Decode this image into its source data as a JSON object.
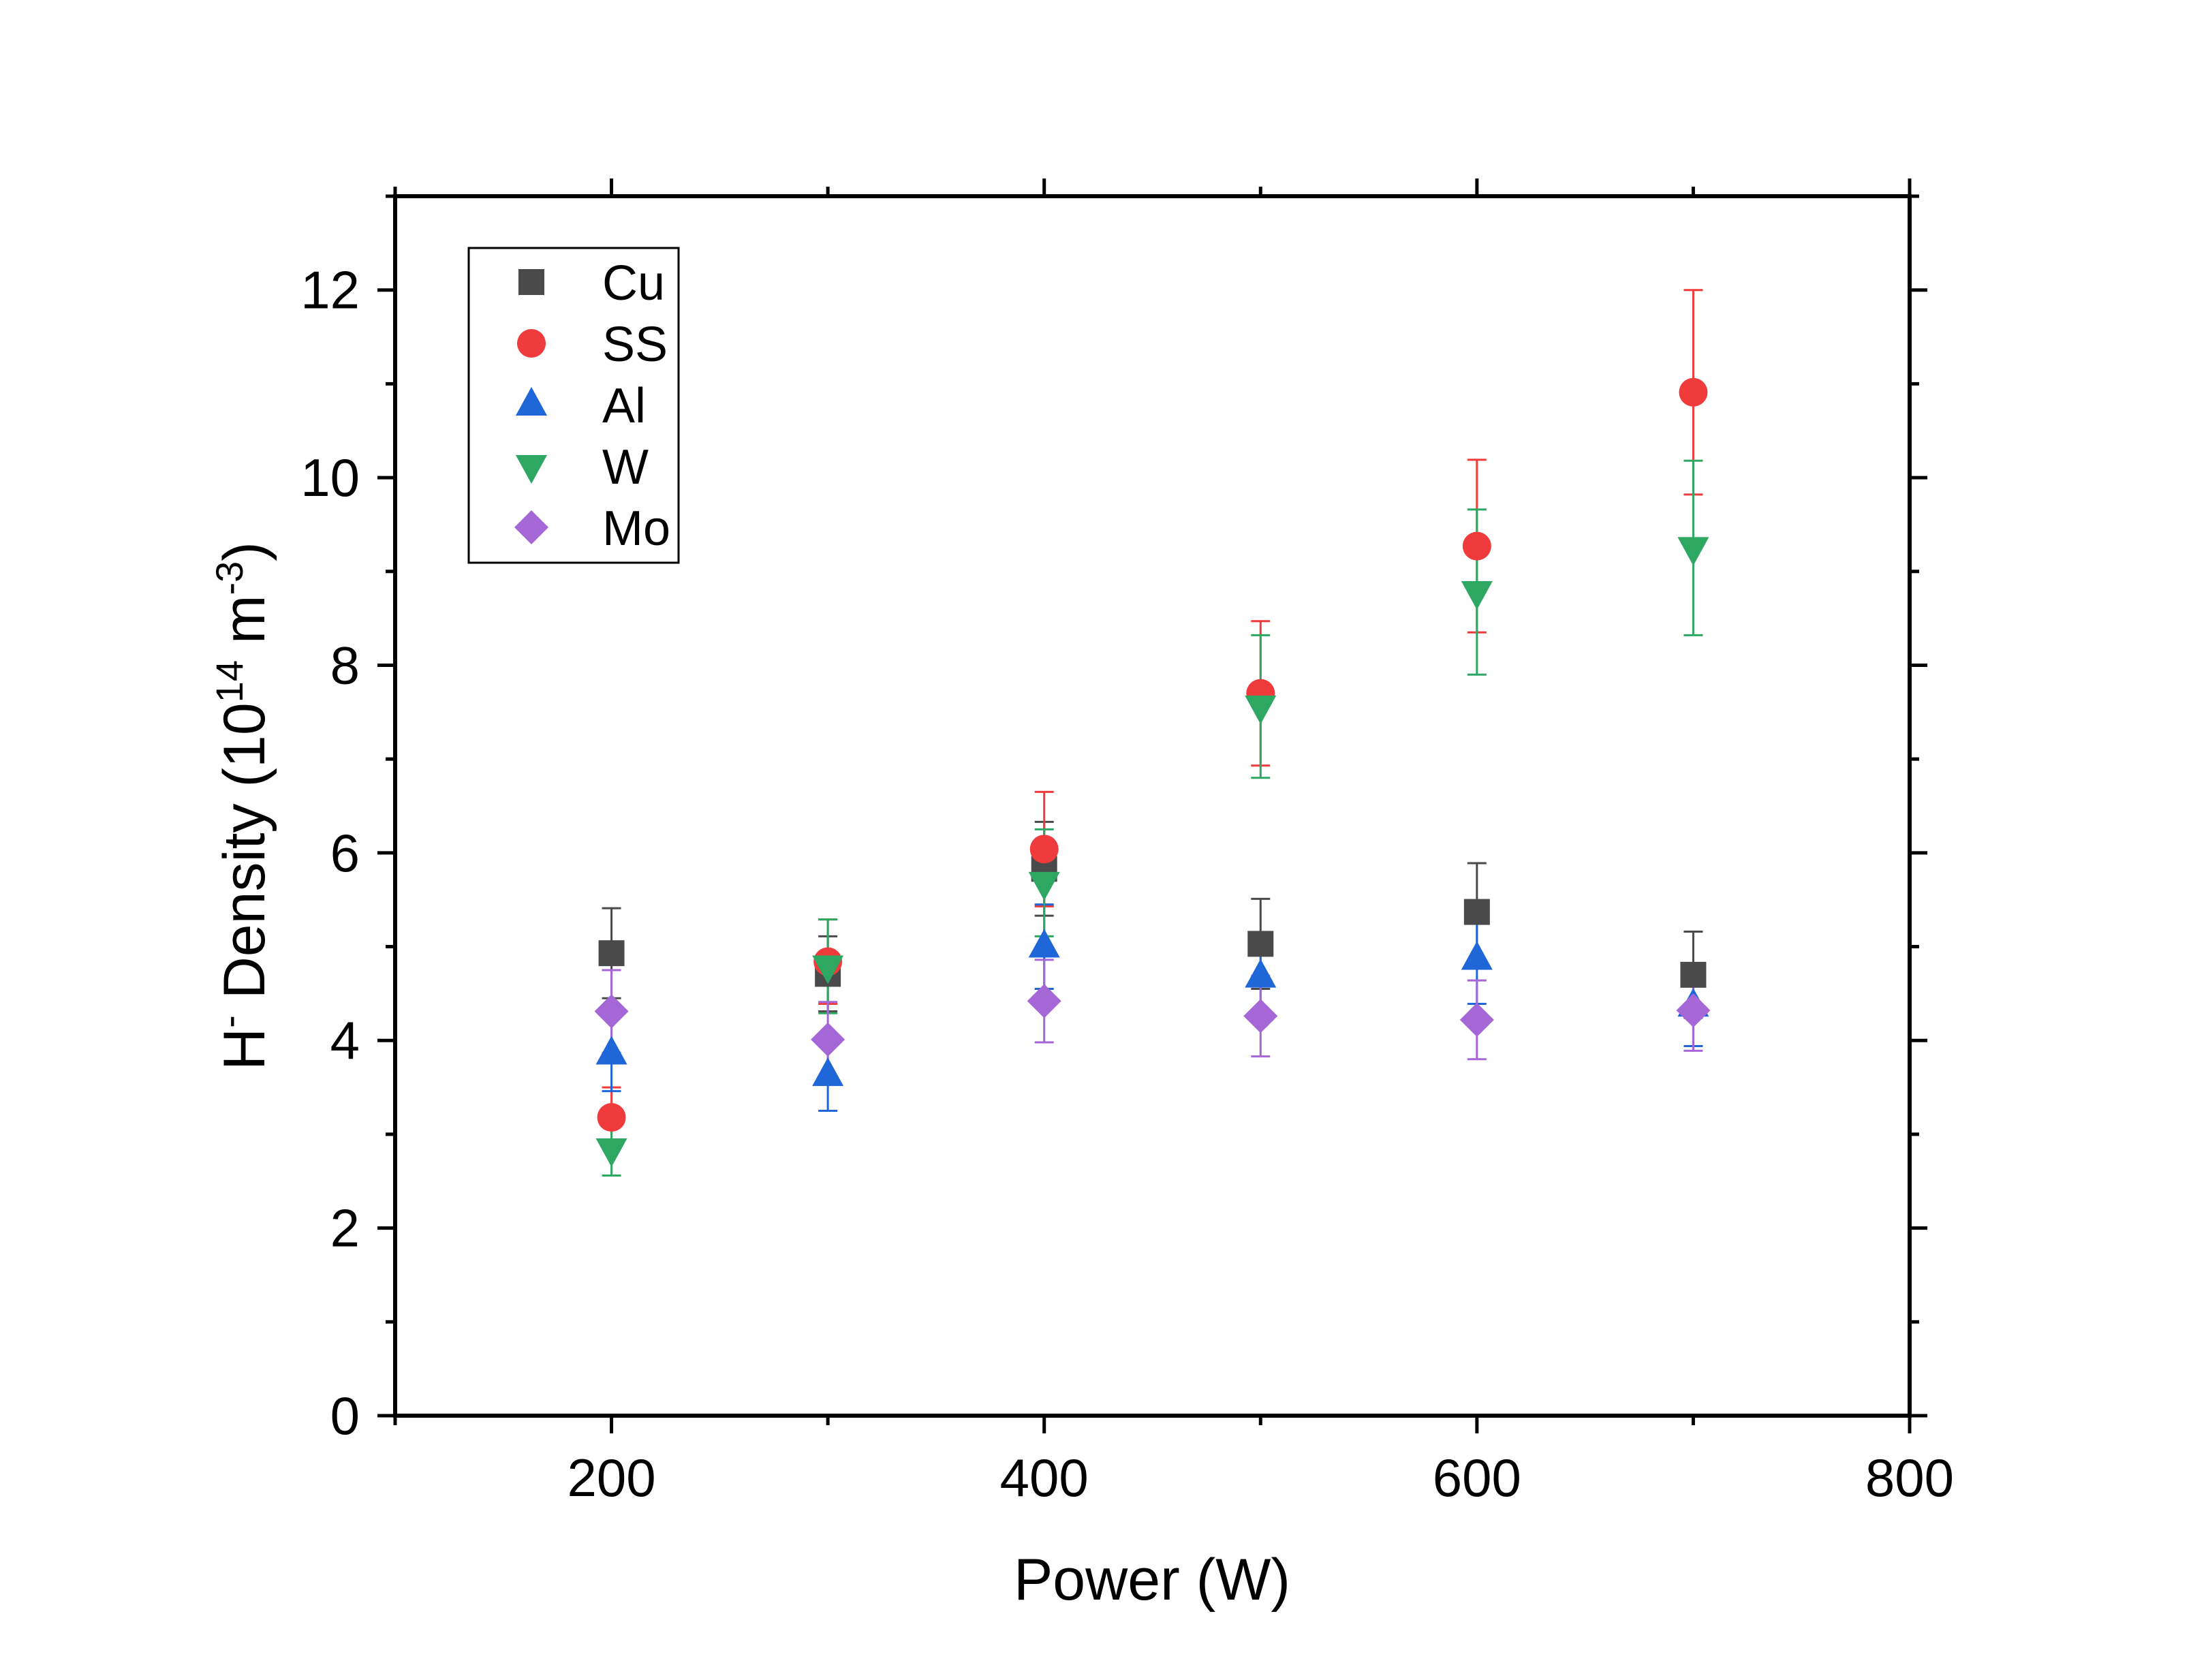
{
  "chart_data": {
    "type": "scatter",
    "title": "",
    "xlabel": "Power (W)",
    "ylabel": {
      "prefix": "H",
      "sup1": "-",
      "mid": " Density (10",
      "sup2": "14",
      "mid2": " m",
      "sup3": "-3",
      "suffix": ")"
    },
    "xlim": [
      100,
      800
    ],
    "ylim": [
      0,
      13
    ],
    "x_ticks": [
      200,
      400,
      600,
      800
    ],
    "y_ticks": [
      0,
      2,
      4,
      6,
      8,
      10,
      12
    ],
    "grid": false,
    "legend_position": "top-left",
    "series": [
      {
        "name": "Cu",
        "marker": "square",
        "color": "#4a4a4a",
        "x": [
          200,
          300,
          400,
          500,
          600,
          700
        ],
        "y": [
          4.93,
          4.71,
          5.83,
          5.03,
          5.37,
          4.7
        ],
        "err": [
          0.48,
          0.4,
          0.5,
          0.48,
          0.52,
          0.46
        ]
      },
      {
        "name": "SS",
        "marker": "circle",
        "color": "#ef3b3b",
        "x": [
          200,
          300,
          400,
          500,
          600,
          700
        ],
        "y": [
          3.18,
          4.84,
          6.04,
          7.7,
          9.27,
          10.91
        ],
        "err": [
          0.32,
          0.45,
          0.61,
          0.77,
          0.92,
          1.09
        ]
      },
      {
        "name": "Al",
        "marker": "triangle-up",
        "color": "#1f66d9",
        "x": [
          200,
          300,
          400,
          500,
          600,
          700
        ],
        "y": [
          3.86,
          3.63,
          5.0,
          4.68,
          4.87,
          4.37
        ],
        "err": [
          0.4,
          0.38,
          0.45,
          0.45,
          0.48,
          0.43
        ]
      },
      {
        "name": "W",
        "marker": "triangle-down",
        "color": "#2ea763",
        "x": [
          200,
          300,
          400,
          500,
          600,
          700
        ],
        "y": [
          2.84,
          4.79,
          5.68,
          7.56,
          8.78,
          9.25
        ],
        "err": [
          0.28,
          0.5,
          0.57,
          0.76,
          0.88,
          0.93
        ]
      },
      {
        "name": "Mo",
        "marker": "diamond",
        "color": "#a566d6",
        "x": [
          200,
          300,
          400,
          500,
          600,
          700
        ],
        "y": [
          4.31,
          4.01,
          4.42,
          4.26,
          4.22,
          4.32
        ],
        "err": [
          0.44,
          0.4,
          0.44,
          0.43,
          0.42,
          0.43
        ]
      }
    ]
  }
}
